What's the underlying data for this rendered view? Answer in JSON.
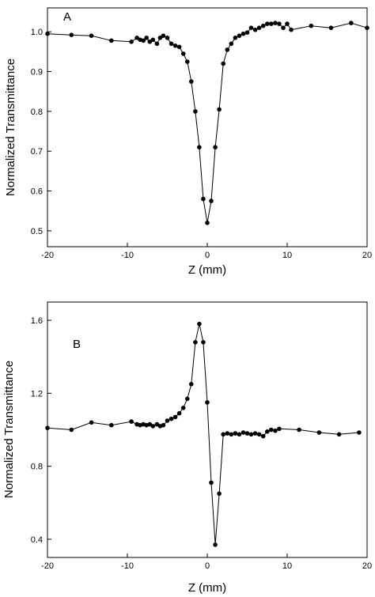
{
  "chart_data": [
    {
      "type": "line",
      "panel_label": "A",
      "xlabel": "Z (mm)",
      "ylabel": "Normalized Transmittance",
      "xlim": [
        -20,
        20
      ],
      "ylim": [
        0.46,
        1.06
      ],
      "xticks": [
        -20,
        -10,
        0,
        10,
        20
      ],
      "yticks": [
        0.5,
        0.6,
        0.7,
        0.8,
        0.9,
        1.0
      ],
      "ytick_labels": [
        "0.5",
        "0.6",
        "0.7",
        "0.8",
        "0.9",
        "1.0"
      ],
      "grid": false,
      "series": [
        {
          "x": [
            -20,
            -17,
            -14.5,
            -12,
            -9.5,
            -8.8,
            -8.4,
            -8,
            -7.6,
            -7.2,
            -6.8,
            -6.3,
            -5.9,
            -5.5,
            -5,
            -4.5,
            -4,
            -3.5,
            -3,
            -2.5,
            -2,
            -1.5,
            -1,
            -0.5,
            0,
            0.5,
            1,
            1.5,
            2,
            2.5,
            3,
            3.5,
            4,
            4.5,
            5,
            5.5,
            6,
            6.5,
            7,
            7.5,
            8,
            8.5,
            9,
            9.5,
            10,
            10.5,
            13,
            15.5,
            18,
            20
          ],
          "y": [
            0.995,
            0.992,
            0.99,
            0.978,
            0.975,
            0.985,
            0.98,
            0.978,
            0.985,
            0.975,
            0.98,
            0.97,
            0.985,
            0.99,
            0.985,
            0.97,
            0.965,
            0.962,
            0.945,
            0.925,
            0.875,
            0.8,
            0.71,
            0.58,
            0.52,
            0.575,
            0.71,
            0.805,
            0.92,
            0.955,
            0.97,
            0.985,
            0.99,
            0.995,
            0.998,
            1.01,
            1.005,
            1.01,
            1.015,
            1.02,
            1.02,
            1.022,
            1.02,
            1.01,
            1.02,
            1.005,
            1.015,
            1.01,
            1.022,
            1.01
          ]
        }
      ]
    },
    {
      "type": "line",
      "panel_label": "B",
      "xlabel": "Z (mm)",
      "ylabel": "Normalized Transmittance",
      "xlim": [
        -20,
        20
      ],
      "ylim": [
        0.3,
        1.7
      ],
      "xticks": [
        -20,
        -10,
        0,
        10,
        20
      ],
      "yticks": [
        0.4,
        0.8,
        1.2,
        1.6
      ],
      "ytick_labels": [
        "0.4",
        "0.8",
        "1.2",
        "1.6"
      ],
      "grid": false,
      "series": [
        {
          "x": [
            -20,
            -17,
            -14.5,
            -12,
            -9.5,
            -8.8,
            -8.4,
            -8,
            -7.6,
            -7.2,
            -6.8,
            -6.3,
            -5.9,
            -5.5,
            -5,
            -4.5,
            -4,
            -3.5,
            -3,
            -2.5,
            -2,
            -1.5,
            -1,
            -0.5,
            0,
            0.5,
            1,
            1.5,
            2,
            2.5,
            3,
            3.5,
            4,
            4.5,
            5,
            5.5,
            6,
            6.5,
            7,
            7.5,
            8,
            8.5,
            9,
            11.5,
            14,
            16.5,
            19
          ],
          "y": [
            1.01,
            1.0,
            1.04,
            1.025,
            1.045,
            1.03,
            1.025,
            1.03,
            1.025,
            1.03,
            1.02,
            1.03,
            1.02,
            1.025,
            1.05,
            1.06,
            1.07,
            1.09,
            1.12,
            1.17,
            1.25,
            1.48,
            1.58,
            1.48,
            1.15,
            0.71,
            0.37,
            0.65,
            0.975,
            0.98,
            0.975,
            0.98,
            0.975,
            0.985,
            0.98,
            0.975,
            0.98,
            0.975,
            0.965,
            0.99,
            1.0,
            0.995,
            1.005,
            1.0,
            0.985,
            0.975,
            0.985
          ]
        }
      ]
    }
  ]
}
